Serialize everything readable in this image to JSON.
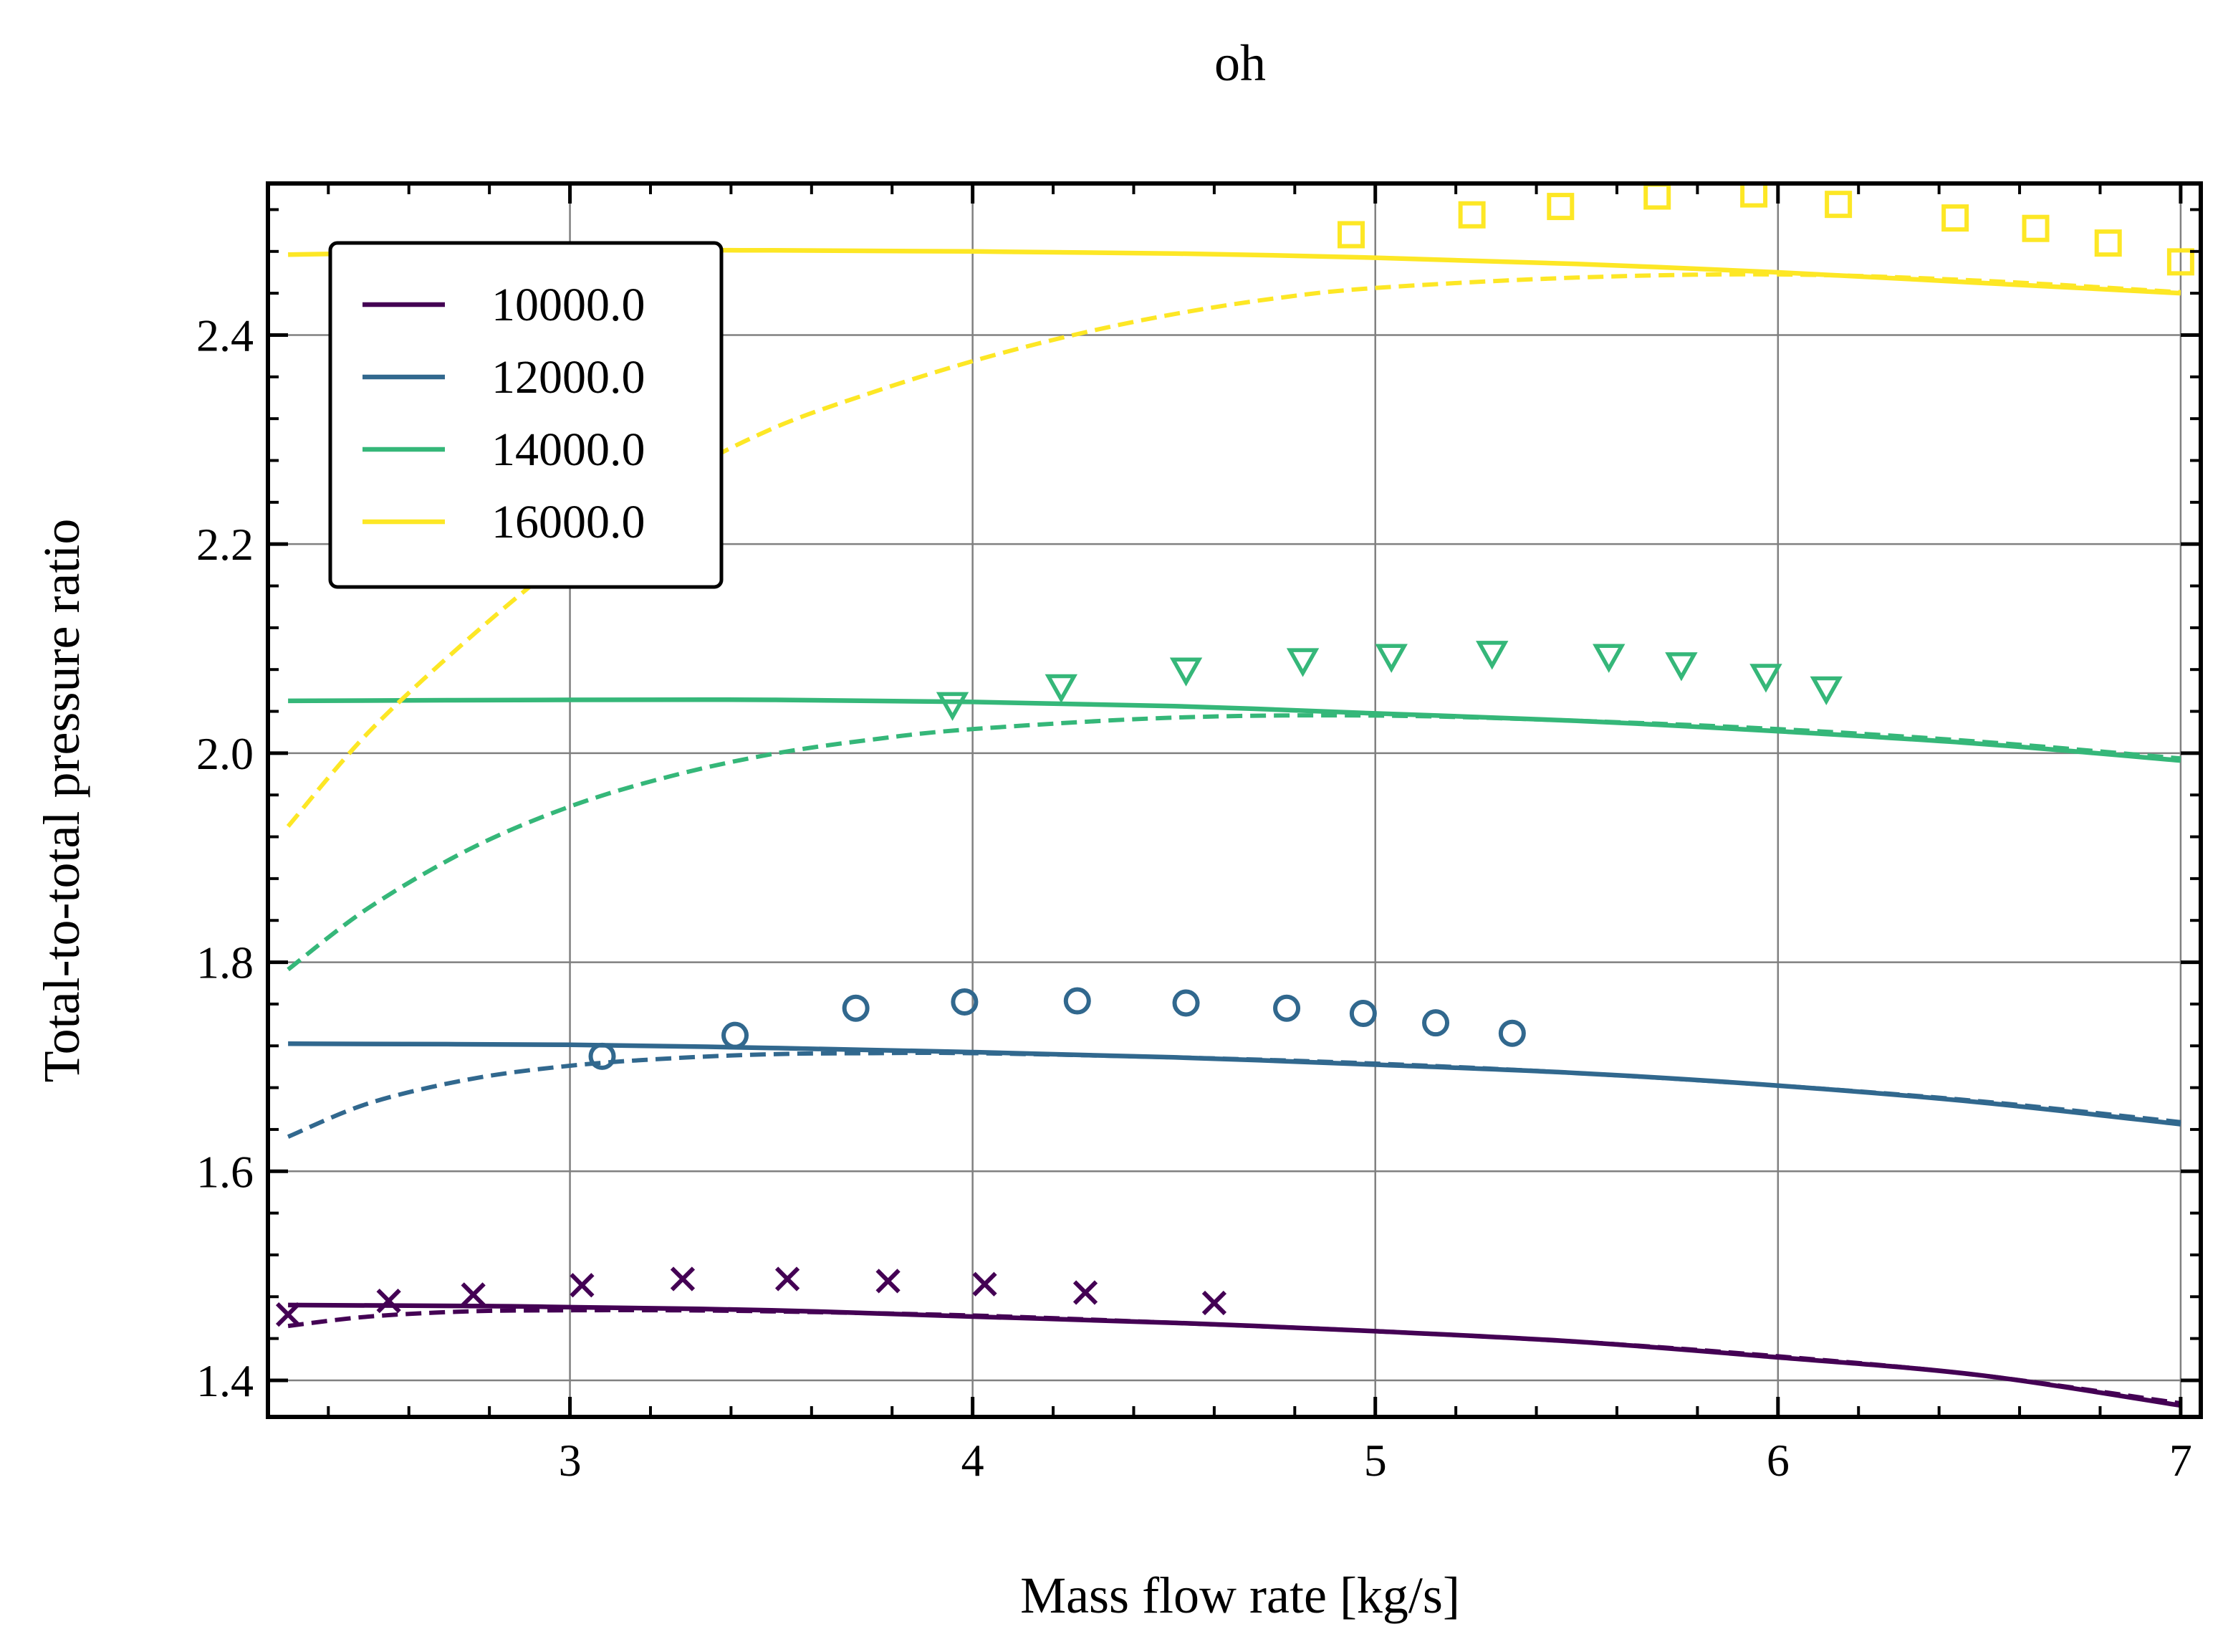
{
  "chart_data": {
    "type": "line",
    "title": "oh",
    "xlabel": "Mass flow rate [kg/s]",
    "ylabel": "Total-to-total pressure ratio",
    "xlim": [
      2.25,
      7.05
    ],
    "ylim": [
      1.365,
      2.545
    ],
    "x_ticks": [
      3,
      4,
      5,
      6,
      7
    ],
    "x_tick_labels": [
      "3",
      "4",
      "5",
      "6",
      "7"
    ],
    "y_ticks": [
      1.4,
      1.6,
      1.8,
      2.0,
      2.2,
      2.4
    ],
    "y_tick_labels": [
      "1.4",
      "1.6",
      "1.8",
      "2.0",
      "2.2",
      "2.4"
    ],
    "grid": true,
    "legend_position": "upper-left",
    "series": [
      {
        "name": "10000.0",
        "color": "#440154",
        "marker": "x",
        "solid": {
          "x": [
            2.3,
            2.8,
            3.0,
            3.5,
            4.0,
            4.5,
            5.0,
            5.5,
            6.0,
            6.5,
            7.0
          ],
          "y": [
            1.472,
            1.471,
            1.47,
            1.467,
            1.461,
            1.455,
            1.447,
            1.437,
            1.422,
            1.405,
            1.376
          ]
        },
        "dashed": {
          "x": [
            2.3,
            2.5,
            2.75,
            3.0,
            3.25,
            3.5,
            4.0,
            4.5,
            5.0,
            5.5,
            6.0,
            6.5,
            7.0
          ],
          "y": [
            1.452,
            1.461,
            1.466,
            1.467,
            1.467,
            1.466,
            1.462,
            1.455,
            1.447,
            1.437,
            1.423,
            1.405,
            1.378
          ]
        },
        "points": {
          "x": [
            2.3,
            2.55,
            2.76,
            3.03,
            3.28,
            3.54,
            3.79,
            4.03,
            4.28,
            4.6
          ],
          "y": [
            1.463,
            1.476,
            1.482,
            1.491,
            1.497,
            1.497,
            1.495,
            1.492,
            1.484,
            1.474
          ]
        }
      },
      {
        "name": "12000.0",
        "color": "#31688e",
        "marker": "o",
        "solid": {
          "x": [
            2.3,
            3.0,
            3.5,
            4.0,
            4.5,
            5.0,
            5.5,
            6.0,
            6.5,
            7.0
          ],
          "y": [
            1.722,
            1.721,
            1.718,
            1.714,
            1.709,
            1.702,
            1.694,
            1.682,
            1.666,
            1.645
          ]
        },
        "dashed": {
          "x": [
            2.3,
            2.5,
            2.75,
            3.0,
            3.25,
            3.5,
            3.75,
            4.0,
            4.5,
            5.0,
            5.5,
            6.0,
            6.5,
            7.0
          ],
          "y": [
            1.633,
            1.665,
            1.688,
            1.701,
            1.708,
            1.712,
            1.713,
            1.713,
            1.709,
            1.703,
            1.694,
            1.682,
            1.667,
            1.647
          ]
        },
        "points": {
          "x": [
            3.08,
            3.41,
            3.71,
            3.98,
            4.26,
            4.53,
            4.78,
            4.97,
            5.15,
            5.34
          ],
          "y": [
            1.71,
            1.73,
            1.756,
            1.762,
            1.763,
            1.761,
            1.756,
            1.751,
            1.742,
            1.732
          ]
        }
      },
      {
        "name": "14000.0",
        "color": "#35b779",
        "marker": "v",
        "solid": {
          "x": [
            2.3,
            3.0,
            3.5,
            4.0,
            4.5,
            5.0,
            5.5,
            6.0,
            6.5,
            7.0
          ],
          "y": [
            2.05,
            2.051,
            2.051,
            2.049,
            2.045,
            2.038,
            2.031,
            2.021,
            2.009,
            1.993
          ]
        },
        "dashed": {
          "x": [
            2.3,
            2.5,
            2.75,
            3.0,
            3.25,
            3.5,
            3.75,
            4.0,
            4.5,
            5.0,
            5.5,
            6.0,
            6.5,
            7.0
          ],
          "y": [
            1.793,
            1.852,
            1.908,
            1.949,
            1.978,
            1.999,
            2.013,
            2.023,
            2.034,
            2.036,
            2.031,
            2.023,
            2.011,
            1.995
          ]
        },
        "points": {
          "x": [
            3.95,
            4.22,
            4.53,
            4.82,
            5.04,
            5.29,
            5.58,
            5.76,
            5.97,
            6.12
          ],
          "y": [
            2.047,
            2.064,
            2.08,
            2.089,
            2.093,
            2.096,
            2.093,
            2.085,
            2.074,
            2.062
          ]
        }
      },
      {
        "name": "16000.0",
        "color": "#fde725",
        "marker": "s",
        "solid": {
          "x": [
            2.3,
            3.0,
            3.5,
            4.0,
            4.5,
            5.0,
            5.5,
            6.0,
            6.5,
            7.0
          ],
          "y": [
            2.477,
            2.481,
            2.481,
            2.48,
            2.478,
            2.474,
            2.468,
            2.46,
            2.45,
            2.44
          ]
        },
        "dashed": {
          "x": [
            2.3,
            2.5,
            2.75,
            3.0,
            3.25,
            3.5,
            3.75,
            4.0,
            4.25,
            4.5,
            4.75,
            5.0,
            5.5,
            6.0,
            6.5,
            7.0
          ],
          "y": [
            1.93,
            2.02,
            2.11,
            2.19,
            2.26,
            2.31,
            2.345,
            2.375,
            2.4,
            2.42,
            2.435,
            2.445,
            2.455,
            2.458,
            2.452,
            2.441
          ]
        },
        "points": {
          "x": [
            4.94,
            5.24,
            5.46,
            5.7,
            5.94,
            6.15,
            6.44,
            6.64,
            6.82,
            7.0
          ],
          "y": [
            2.496,
            2.515,
            2.523,
            2.533,
            2.535,
            2.525,
            2.512,
            2.502,
            2.488,
            2.47
          ]
        }
      }
    ]
  }
}
